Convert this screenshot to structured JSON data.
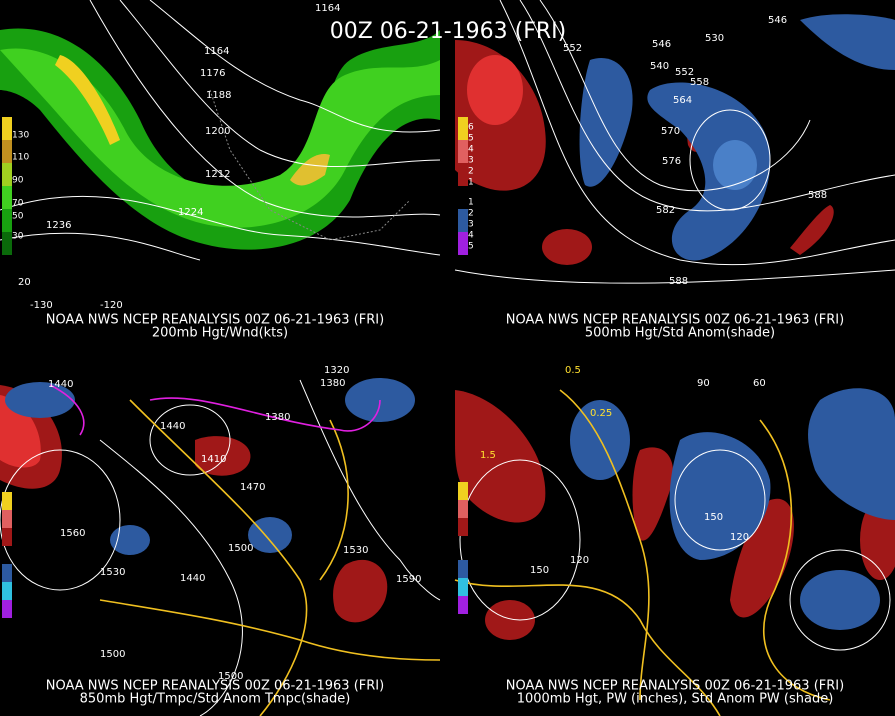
{
  "title": "00Z 06-21-1963 (FRI)",
  "panels": [
    {
      "caption": [
        "NOAA NWS NCEP REANALYSIS 00Z 06-21-1963 (FRI)",
        "200mb Hgt/Wnd(kts)"
      ],
      "legend": [
        "130",
        "110",
        "90",
        "70",
        "50",
        "30"
      ],
      "contours": [
        "1164",
        "1164",
        "1176",
        "1188",
        "1200",
        "1212",
        "1224",
        "1236"
      ],
      "axis": [
        "-130",
        "-120",
        "20"
      ]
    },
    {
      "caption": [
        "NOAA NWS NCEP REANALYSIS 00Z 06-21-1963 (FRI)",
        "500mb Hgt/Std Anom(shade)"
      ],
      "legend": [
        "6",
        "5",
        "4",
        "3",
        "2",
        "1",
        "1",
        "2",
        "3",
        "4",
        "5"
      ],
      "contours": [
        "552",
        "546",
        "530",
        "546",
        "540",
        "552",
        "558",
        "564",
        "570",
        "576",
        "582",
        "588",
        "588"
      ]
    },
    {
      "caption": [
        "NOAA NWS NCEP REANALYSIS 00Z 06-21-1963 (FRI)",
        "850mb Hgt/Tmpc/Std Anom Tmpc(shade)"
      ],
      "contours": [
        "1440",
        "1320",
        "1380",
        "1380",
        "1440",
        "1470",
        "1410",
        "1500",
        "1560",
        "1530",
        "1440",
        "1530",
        "1590",
        "1500",
        "1500"
      ]
    },
    {
      "caption": [
        "NOAA NWS NCEP REANALYSIS 00Z 06-21-1963 (FRI)",
        "1000mb Hgt, PW (inches), Std Anom PW (shade)"
      ],
      "contours": [
        "0.5",
        "0.25",
        "1.5",
        "90",
        "60",
        "150",
        "120",
        "150",
        "120"
      ]
    }
  ]
}
